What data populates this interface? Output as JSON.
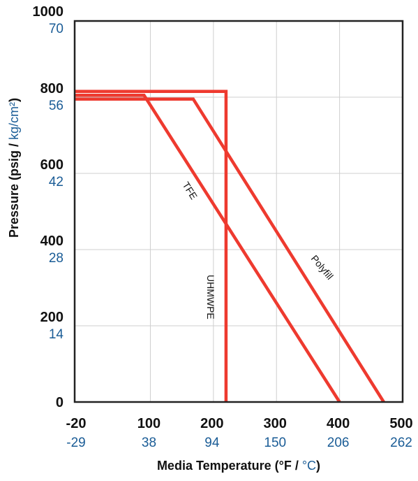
{
  "chart_data": {
    "type": "line",
    "xlabel": {
      "primary": "Media Temperature (°F / ",
      "secondary": "°C",
      "close": ")"
    },
    "ylabel": {
      "primary": "Pressure (psig / ",
      "secondary": "kg/cm²",
      "close": ")"
    },
    "xlim": [
      -20,
      500
    ],
    "ylim": [
      0,
      1000
    ],
    "grid": true,
    "x_ticks": [
      {
        "f": "-20",
        "c": "-29",
        "value": -20
      },
      {
        "f": "100",
        "c": "38",
        "value": 100
      },
      {
        "f": "200",
        "c": "94",
        "value": 200
      },
      {
        "f": "300",
        "c": "150",
        "value": 300
      },
      {
        "f": "400",
        "c": "206",
        "value": 400
      },
      {
        "f": "500",
        "c": "262",
        "value": 500
      }
    ],
    "y_ticks": [
      {
        "psig": "1000",
        "kg": "70",
        "value": 1000
      },
      {
        "psig": "800",
        "kg": "56",
        "value": 800
      },
      {
        "psig": "600",
        "kg": "42",
        "value": 600
      },
      {
        "psig": "400",
        "kg": "28",
        "value": 400
      },
      {
        "psig": "200",
        "kg": "14",
        "value": 200
      },
      {
        "psig": "0",
        "kg": "",
        "value": 0
      }
    ],
    "series": [
      {
        "name": "UHMWPE",
        "x": [
          -20,
          220,
          220
        ],
        "y": [
          815,
          815,
          0
        ]
      },
      {
        "name": "TFE",
        "x": [
          -20,
          90,
          400
        ],
        "y": [
          805,
          805,
          0
        ]
      },
      {
        "name": "Polyfill",
        "x": [
          -20,
          168,
          470
        ],
        "y": [
          795,
          795,
          0
        ]
      }
    ]
  },
  "colors": {
    "series": "#ee3a2f",
    "secondary_text": "#1a5c96",
    "grid": "#cfcfcf",
    "frame": "#222222"
  }
}
